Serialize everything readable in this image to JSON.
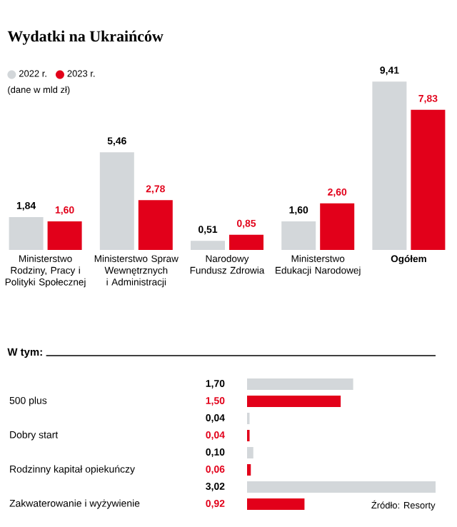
{
  "chart_data": [
    {
      "type": "bar",
      "title": "Wydatki na Ukraińców",
      "subtitle": "(dane w mld zł)",
      "legend": "top left",
      "categories": [
        "Ministerstwo Rodziny, Pracy i Polityki Społecznej",
        "Ministerstwo Spraw Wewnętrznych i Administracji",
        "Narodowy Fundusz Zdrowia",
        "Ministerstwo Edukacji Narodowej",
        "Ogółem"
      ],
      "series": [
        {
          "name": "2022 r.",
          "color": "#d3d7da",
          "values": [
            1.84,
            5.46,
            0.51,
            1.6,
            9.41
          ],
          "value_labels": [
            "1,84",
            "5,46",
            "0,51",
            "1,60",
            "9,41"
          ]
        },
        {
          "name": "2023 r.",
          "color": "#e2001a",
          "values": [
            1.6,
            2.78,
            0.85,
            2.6,
            7.83
          ],
          "value_labels": [
            "1,60",
            "2,78",
            "0,85",
            "2,60",
            "7,83"
          ]
        }
      ]
    },
    {
      "type": "bar",
      "orientation": "horizontal",
      "title": "W tym:",
      "annotations": [
        "Źródło: Resorty"
      ],
      "categories": [
        "500 plus",
        "Dobry start",
        "Rodzinny kapitał opiekuńczy",
        "Zakwaterowanie i wyżywienie"
      ],
      "series": [
        {
          "color": "#d3d7da",
          "values": [
            1.7,
            0.04,
            0.1,
            3.02
          ],
          "value_labels": [
            "1,70",
            "0,04",
            "0,10",
            "3,02"
          ]
        },
        {
          "color": "#e2001a",
          "values": [
            1.5,
            0.04,
            0.06,
            0.92
          ],
          "value_labels": [
            "1,50",
            "0,04",
            "0,06",
            "0,92"
          ]
        }
      ]
    }
  ]
}
